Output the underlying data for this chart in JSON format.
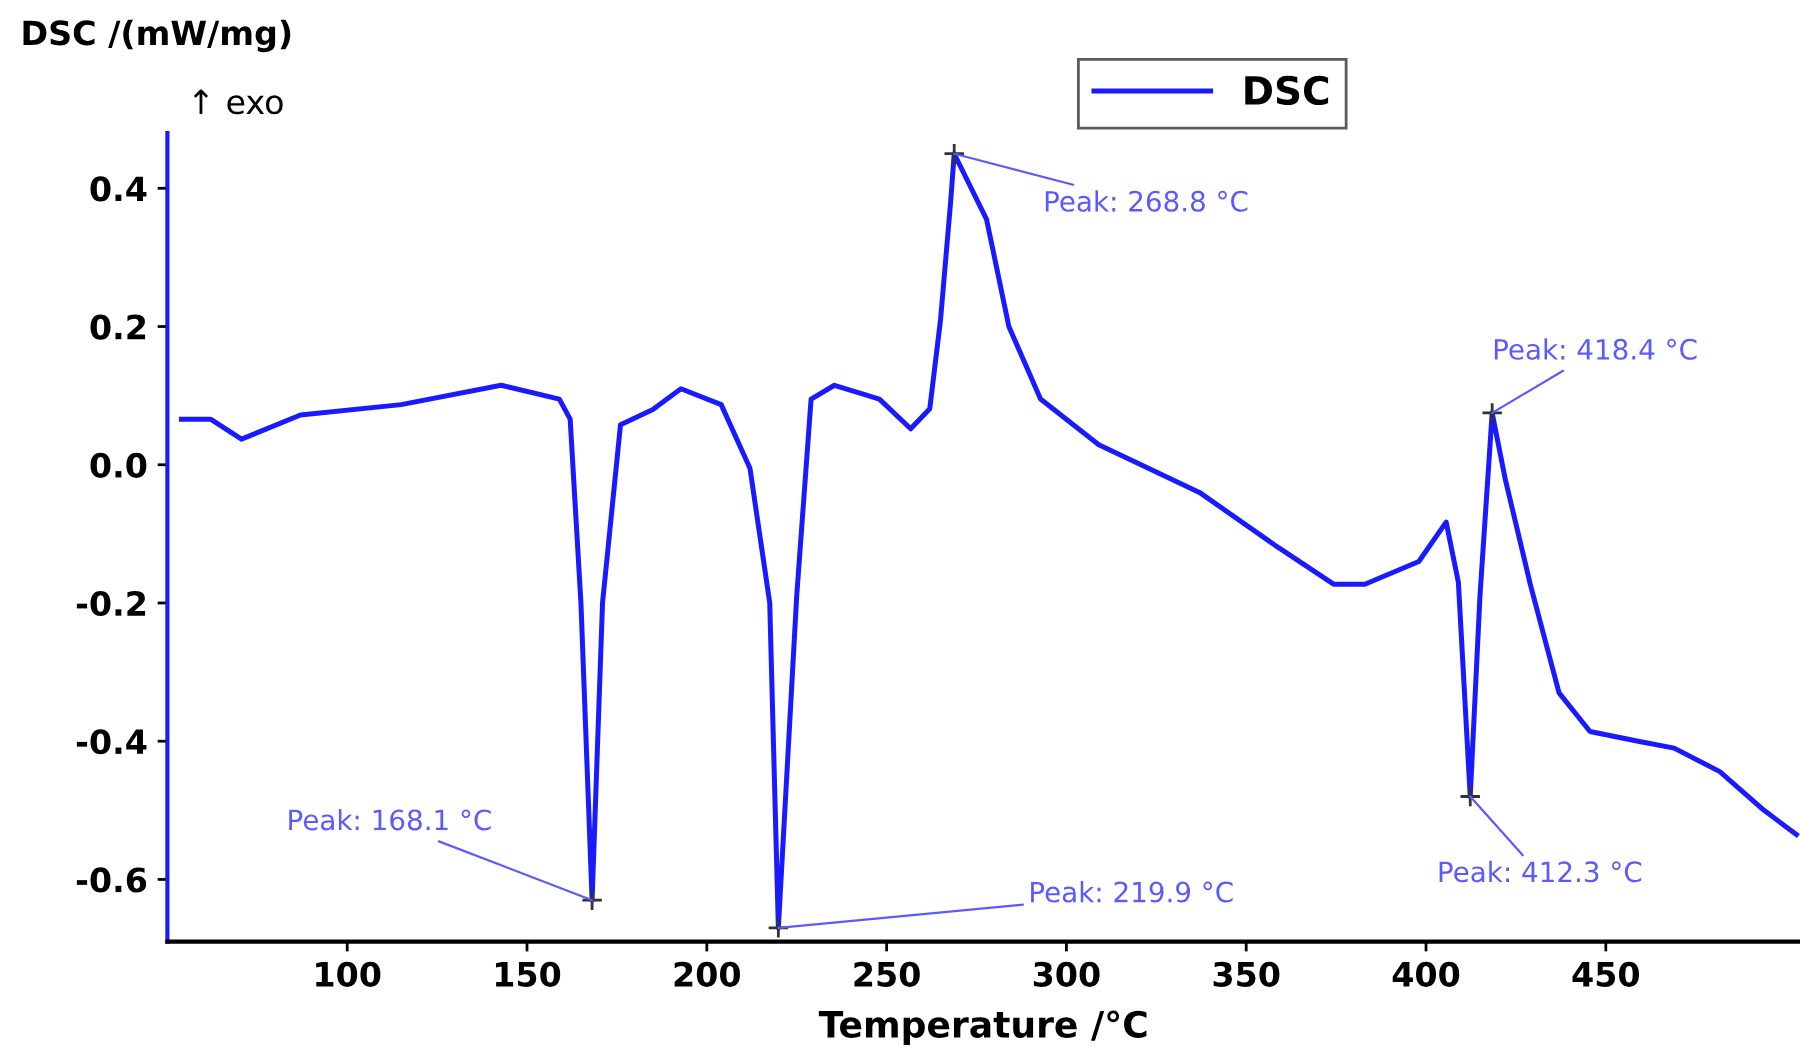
{
  "chart_data": {
    "type": "line",
    "xlabel": "Temperature /°C",
    "ylabel": "DSC /(mW/mg)",
    "xlim": [
      50,
      504
    ],
    "ylim": [
      -0.69,
      0.48
    ],
    "xticks": [
      100,
      150,
      200,
      250,
      300,
      350,
      400,
      450
    ],
    "yticks": [
      {
        "value": -0.6,
        "label": "-0.6"
      },
      {
        "value": -0.4,
        "label": "-0.4"
      },
      {
        "value": -0.2,
        "label": "-0.2"
      },
      {
        "value": 0,
        "label": "0.0"
      },
      {
        "value": 0.2,
        "label": "0.2"
      },
      {
        "value": 0.4,
        "label": "0.4"
      }
    ],
    "grid": false,
    "legend": "top",
    "marker": "none",
    "line_style": "solid",
    "series": [
      {
        "name": "DSC",
        "color": "#1a1aff",
        "x": [
          53.9,
          62,
          70.6,
          87,
          115,
          142.8,
          159,
          162,
          165,
          168.1,
          171,
          176,
          185,
          192.8,
          204,
          212,
          217.5,
          219.9,
          225,
          229,
          235.5,
          248,
          256.7,
          262,
          265,
          267.8,
          268.8,
          277.8,
          284,
          292.8,
          309,
          337,
          359,
          374.4,
          383,
          398,
          405.6,
          409,
          412.3,
          415,
          418.4,
          422,
          429,
          437,
          445.6,
          459,
          469,
          481.7,
          494,
          503
        ],
        "values": [
          0.066,
          0.066,
          0.037,
          0.072,
          0.087,
          0.115,
          0.095,
          0.066,
          -0.2,
          -0.63,
          -0.2,
          0.058,
          0.08,
          0.11,
          0.087,
          -0.005,
          -0.2,
          -0.67,
          -0.19,
          0.095,
          0.115,
          0.095,
          0.052,
          0.081,
          0.21,
          0.38,
          0.45,
          0.355,
          0.2,
          0.095,
          0.029,
          -0.04,
          -0.12,
          -0.173,
          -0.173,
          -0.14,
          -0.083,
          -0.17,
          -0.48,
          -0.19,
          0.075,
          -0.02,
          -0.173,
          -0.33,
          -0.386,
          -0.4,
          -0.41,
          -0.444,
          -0.5,
          -0.535
        ]
      }
    ],
    "annotations": [
      "↑ exo",
      {
        "text": "Peak: 168.1 °C",
        "x": 168.1,
        "y": -0.63
      },
      {
        "text": "Peak: 219.9 °C",
        "x": 219.9,
        "y": -0.67
      },
      {
        "text": "Peak: 268.8 °C",
        "x": 268.8,
        "y": 0.45
      },
      {
        "text": "Peak: 412.3 °C",
        "x": 412.3,
        "y": -0.48
      },
      {
        "text": "Peak: 418.4 °C",
        "x": 418.4,
        "y": 0.075
      }
    ]
  }
}
